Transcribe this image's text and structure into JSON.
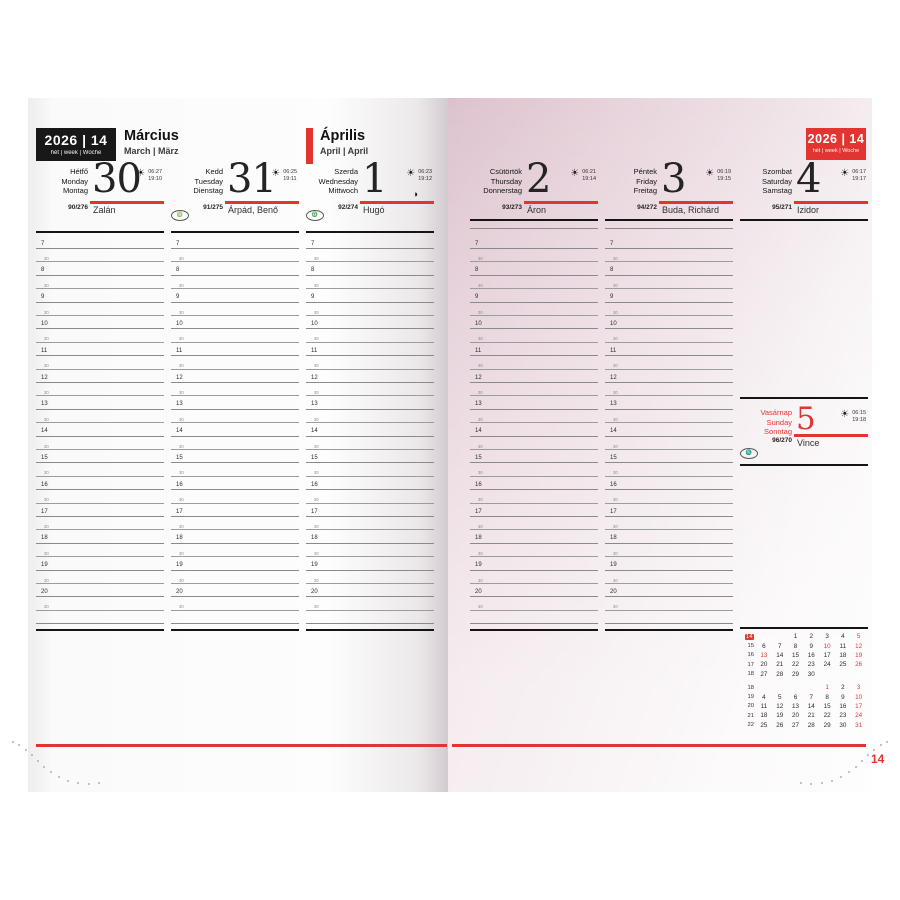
{
  "accent": "#e23430",
  "badge": {
    "title": "2026 | 14",
    "subtitle": "hét | week | Woche"
  },
  "left_month": {
    "title": "Március",
    "subtitle": "March | März"
  },
  "right_month": {
    "title": "Április",
    "subtitle": "April | April"
  },
  "time_grid": {
    "hours": [
      "7",
      "8",
      "9",
      "10",
      "11",
      "12",
      "13",
      "14",
      "15",
      "16",
      "17",
      "18",
      "19",
      "20"
    ],
    "half_label": "30"
  },
  "days": [
    {
      "names": [
        "Hétfő",
        "Monday",
        "Montag"
      ],
      "date": "30",
      "sunrise": "06:27",
      "sunset": "19:10",
      "day_of_year": "90/276",
      "nameday": "Zalán",
      "oval": "",
      "moon": "",
      "red": false
    },
    {
      "names": [
        "Kedd",
        "Tuesday",
        "Dienstag"
      ],
      "date": "31",
      "sunrise": "06:25",
      "sunset": "19:11",
      "day_of_year": "91/275",
      "nameday": "Árpád, Benő",
      "oval": "♍",
      "moon": "",
      "red": false
    },
    {
      "names": [
        "Szerda",
        "Wednesday",
        "Mittwoch"
      ],
      "date": "1",
      "sunrise": "06:23",
      "sunset": "19:12",
      "day_of_year": "92/274",
      "nameday": "Hugó",
      "oval": "♎",
      "moon": "◑",
      "red": false
    },
    {
      "names": [
        "Csütörtök",
        "Thursday",
        "Donnerstag"
      ],
      "date": "2",
      "sunrise": "06:21",
      "sunset": "19:14",
      "day_of_year": "93/273",
      "nameday": "Áron",
      "oval": "",
      "moon": "",
      "red": false
    },
    {
      "names": [
        "Péntek",
        "Friday",
        "Freitag"
      ],
      "date": "3",
      "sunrise": "06:19",
      "sunset": "19:15",
      "day_of_year": "94/272",
      "nameday": "Buda, Richárd",
      "oval": "",
      "moon": "",
      "red": false
    },
    {
      "names": [
        "Szombat",
        "Saturday",
        "Samstag"
      ],
      "date": "4",
      "sunrise": "06:17",
      "sunset": "19:17",
      "day_of_year": "95/271",
      "nameday": "Izidor",
      "oval": "",
      "moon": "",
      "red": false
    },
    {
      "names": [
        "Vasárnap",
        "Sunday",
        "Sonntag"
      ],
      "date": "5",
      "sunrise": "06:15",
      "sunset": "19:18",
      "day_of_year": "96/270",
      "nameday": "Vince",
      "oval": "♏",
      "moon": "",
      "red": true
    }
  ],
  "mini_calendar": {
    "rows": [
      {
        "week": "14",
        "week_highlight": true,
        "cells": [
          "",
          "",
          "1",
          "2",
          "3",
          "4",
          "5"
        ],
        "red": [
          false,
          false,
          false,
          false,
          false,
          false,
          true
        ]
      },
      {
        "week": "15",
        "week_highlight": false,
        "cells": [
          "6",
          "7",
          "8",
          "9",
          "10",
          "11",
          "12"
        ],
        "red": [
          false,
          false,
          false,
          false,
          true,
          false,
          true
        ]
      },
      {
        "week": "16",
        "week_highlight": false,
        "cells": [
          "13",
          "14",
          "15",
          "16",
          "17",
          "18",
          "19"
        ],
        "red": [
          true,
          false,
          false,
          false,
          false,
          false,
          true
        ]
      },
      {
        "week": "17",
        "week_highlight": false,
        "cells": [
          "20",
          "21",
          "22",
          "23",
          "24",
          "25",
          "26"
        ],
        "red": [
          false,
          false,
          false,
          false,
          false,
          false,
          true
        ]
      },
      {
        "week": "18",
        "week_highlight": false,
        "cells": [
          "27",
          "28",
          "29",
          "30",
          "",
          "",
          ""
        ],
        "red": [
          false,
          false,
          false,
          false,
          false,
          false,
          false
        ]
      },
      {
        "week": "18",
        "week_highlight": false,
        "cells": [
          "",
          "",
          "",
          "",
          "1",
          "2",
          "3"
        ],
        "red": [
          false,
          false,
          false,
          false,
          true,
          false,
          true
        ],
        "gap": true
      },
      {
        "week": "19",
        "week_highlight": false,
        "cells": [
          "4",
          "5",
          "6",
          "7",
          "8",
          "9",
          "10"
        ],
        "red": [
          false,
          false,
          false,
          false,
          false,
          false,
          true
        ]
      },
      {
        "week": "20",
        "week_highlight": false,
        "cells": [
          "11",
          "12",
          "13",
          "14",
          "15",
          "16",
          "17"
        ],
        "red": [
          false,
          false,
          false,
          false,
          false,
          false,
          true
        ]
      },
      {
        "week": "21",
        "week_highlight": false,
        "cells": [
          "18",
          "19",
          "20",
          "21",
          "22",
          "23",
          "24"
        ],
        "red": [
          false,
          false,
          false,
          false,
          false,
          false,
          true
        ]
      },
      {
        "week": "22",
        "week_highlight": false,
        "cells": [
          "25",
          "26",
          "27",
          "28",
          "29",
          "30",
          "31"
        ],
        "red": [
          false,
          false,
          false,
          false,
          false,
          false,
          true
        ]
      }
    ]
  },
  "footer": {
    "page_number": "14"
  }
}
